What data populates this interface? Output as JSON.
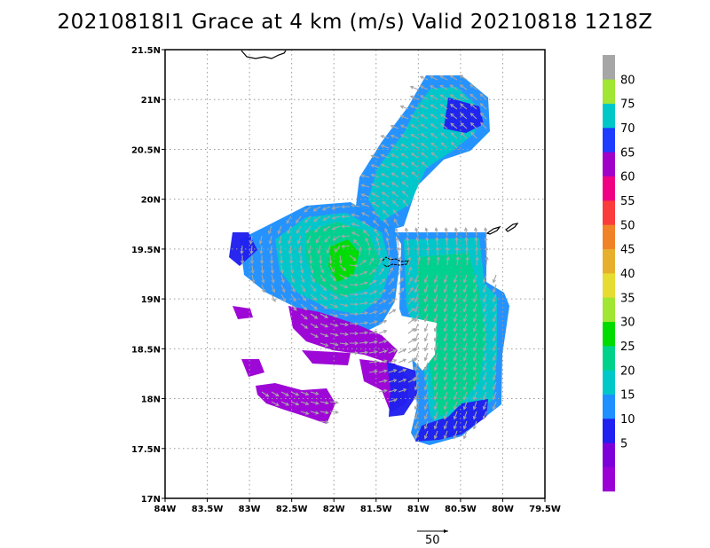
{
  "title": "20210818I1 Grace at 4 km (m/s) Valid 20210818  1218Z",
  "map": {
    "lon_range": [
      -84,
      -79.5
    ],
    "lat_range": [
      17,
      21.5
    ],
    "lon_ticks": [
      {
        "v": -84,
        "label": "84W"
      },
      {
        "v": -83.5,
        "label": "83.5W"
      },
      {
        "v": -83,
        "label": "83W"
      },
      {
        "v": -82.5,
        "label": "82.5W"
      },
      {
        "v": -82,
        "label": "82W"
      },
      {
        "v": -81.5,
        "label": "81.5W"
      },
      {
        "v": -81,
        "label": "81W"
      },
      {
        "v": -80.5,
        "label": "80.5W"
      },
      {
        "v": -80,
        "label": "80W"
      },
      {
        "v": -79.5,
        "label": "79.5W"
      }
    ],
    "lat_ticks": [
      {
        "v": 17,
        "label": "17N"
      },
      {
        "v": 17.5,
        "label": "17.5N"
      },
      {
        "v": 18,
        "label": "18N"
      },
      {
        "v": 18.5,
        "label": "18.5N"
      },
      {
        "v": 19,
        "label": "19N"
      },
      {
        "v": 19.5,
        "label": "19.5N"
      },
      {
        "v": 20,
        "label": "20N"
      },
      {
        "v": 20.5,
        "label": "20.5N"
      },
      {
        "v": 21,
        "label": "21N"
      },
      {
        "v": 21.5,
        "label": "21.5N"
      }
    ],
    "grid": "dotted",
    "wind_center": {
      "lon": -81.8,
      "lat": 19.45
    },
    "coastline_color": "#000000",
    "vector_color": "#a6a6a6"
  },
  "colorbar": {
    "levels": [
      {
        "color": "#9b00d5",
        "label": ""
      },
      {
        "color": "#7d00d8",
        "label": "5"
      },
      {
        "color": "#2020f0",
        "label": "10"
      },
      {
        "color": "#1e90ff",
        "label": "15"
      },
      {
        "color": "#00c8c8",
        "label": "20"
      },
      {
        "color": "#00d28c",
        "label": "25"
      },
      {
        "color": "#00dc00",
        "label": "30"
      },
      {
        "color": "#a0e632",
        "label": "35"
      },
      {
        "color": "#e6dc32",
        "label": "40"
      },
      {
        "color": "#e6af2d",
        "label": "45"
      },
      {
        "color": "#f08228",
        "label": "50"
      },
      {
        "color": "#fa3c3c",
        "label": "55"
      },
      {
        "color": "#f00082",
        "label": "60"
      },
      {
        "color": "#a000c8",
        "label": "65"
      },
      {
        "color": "#1e3cff",
        "label": "70"
      },
      {
        "color": "#00c8c8",
        "label": "75"
      },
      {
        "color": "#a0e632",
        "label": "80"
      },
      {
        "color": "#a6a6a6",
        "label": ""
      }
    ]
  },
  "reference_vector": {
    "label": "50"
  }
}
